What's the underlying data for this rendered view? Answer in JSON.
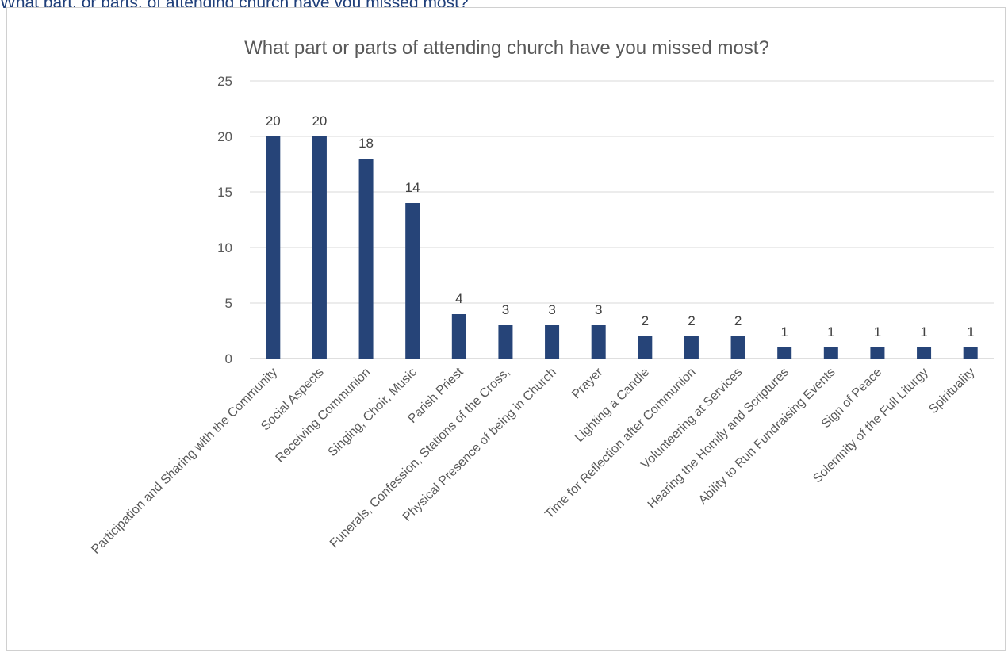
{
  "heading": "What part, or parts, of attending church have you missed most?",
  "chart_data": {
    "type": "bar",
    "title": "What part or parts of attending church have you missed most?",
    "categories": [
      "Participation and Sharing with the Community",
      "Social Aspects",
      "Receiving Communion",
      "Singing, Choir, Music",
      "Parish Priest",
      "Funerals, Confession, Stations of the Cross,",
      "Physical Presence of being in Church",
      "Prayer",
      "Lighting a Candle",
      "Time for Reflection after Communion",
      "Volunteering at Services",
      "Hearing the Homily and Scriptures",
      "Ability to Run Fundraising Events",
      "Sign of Peace",
      "Solemnity of the Full Liturgy",
      "Spirituality"
    ],
    "values": [
      20,
      20,
      18,
      14,
      4,
      3,
      3,
      3,
      2,
      2,
      2,
      1,
      1,
      1,
      1,
      1
    ],
    "y_ticks": [
      0,
      5,
      10,
      15,
      20,
      25
    ],
    "ylim": [
      0,
      25
    ],
    "grid": true,
    "legend": "none",
    "bar_color": "#264478"
  }
}
